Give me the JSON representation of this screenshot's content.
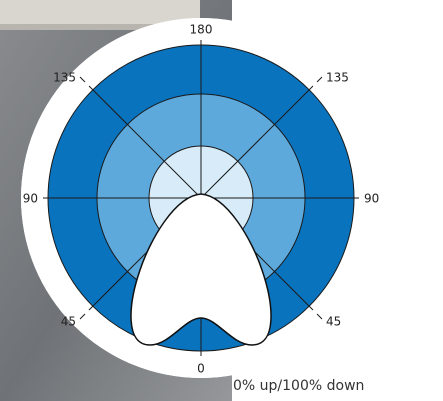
{
  "diagram": {
    "labels": {
      "top": "180",
      "upper_left": "135",
      "upper_right": "135",
      "left": "90",
      "right": "90",
      "lower_left": "45",
      "lower_right": "45",
      "bottom": "0"
    },
    "caption": "0% up/100% down"
  }
}
